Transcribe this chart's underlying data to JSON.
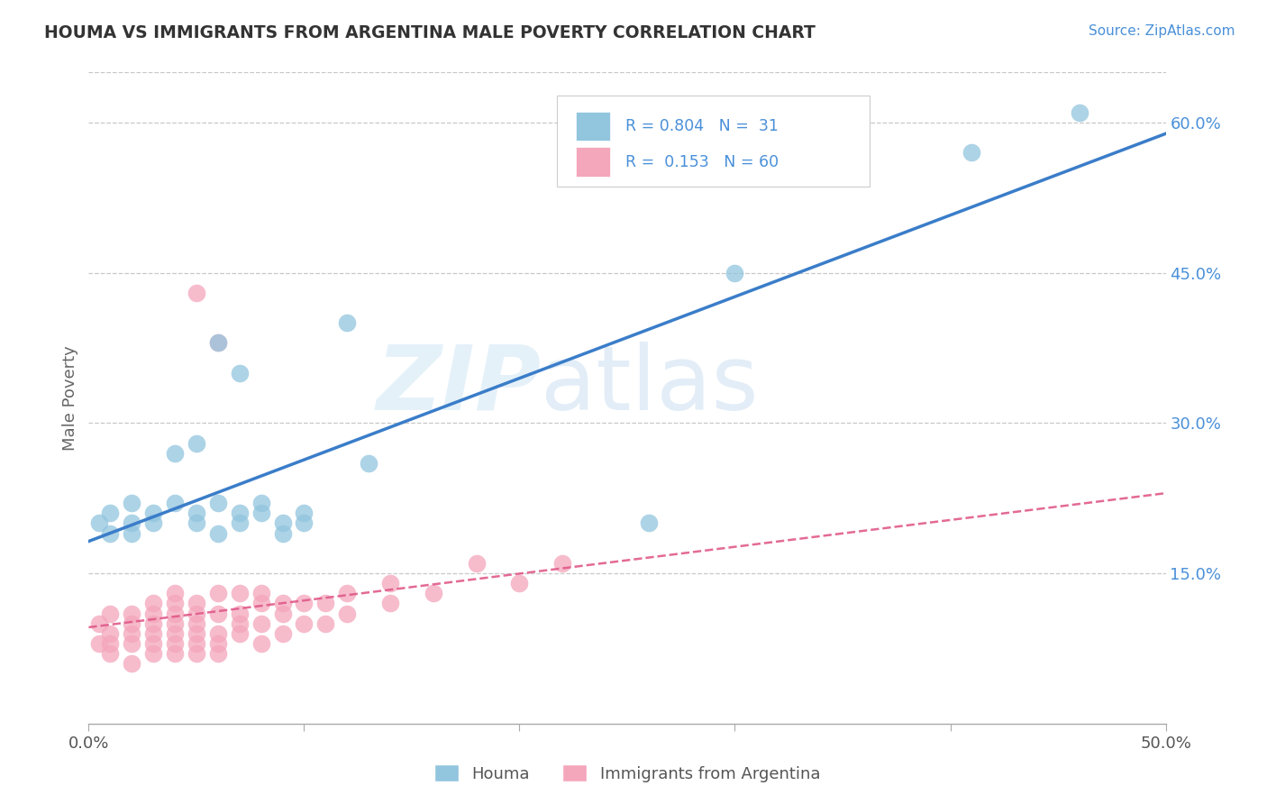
{
  "title": "HOUMA VS IMMIGRANTS FROM ARGENTINA MALE POVERTY CORRELATION CHART",
  "source": "Source: ZipAtlas.com",
  "ylabel": "Male Poverty",
  "x_min": 0.0,
  "x_max": 0.5,
  "y_min": 0.0,
  "y_max": 0.65,
  "x_ticks": [
    0.0,
    0.1,
    0.2,
    0.3,
    0.4,
    0.5
  ],
  "x_tick_labels": [
    "0.0%",
    "",
    "",
    "",
    "",
    "50.0%"
  ],
  "y_ticks_right": [
    0.15,
    0.3,
    0.45,
    0.6
  ],
  "y_tick_labels_right": [
    "15.0%",
    "30.0%",
    "45.0%",
    "60.0%"
  ],
  "houma_color": "#92c5de",
  "argentina_color": "#f4a6bb",
  "houma_line_color": "#3a7dc9",
  "argentina_line_color": "#e05a8a",
  "watermark_zip": "ZIP",
  "watermark_atlas": "atlas",
  "background_color": "#ffffff",
  "grid_color": "#c8c8c8",
  "legend_box_color": "#f0f0f0",
  "houma_x": [
    0.005,
    0.01,
    0.01,
    0.02,
    0.02,
    0.02,
    0.03,
    0.03,
    0.04,
    0.04,
    0.05,
    0.05,
    0.06,
    0.06,
    0.07,
    0.07,
    0.08,
    0.08,
    0.09,
    0.09,
    0.1,
    0.1,
    0.12,
    0.05,
    0.06,
    0.07,
    0.26,
    0.3,
    0.41,
    0.46,
    0.13
  ],
  "houma_y": [
    0.2,
    0.19,
    0.21,
    0.2,
    0.22,
    0.19,
    0.21,
    0.2,
    0.22,
    0.27,
    0.21,
    0.2,
    0.22,
    0.19,
    0.21,
    0.2,
    0.22,
    0.21,
    0.2,
    0.19,
    0.21,
    0.2,
    0.4,
    0.28,
    0.38,
    0.35,
    0.2,
    0.45,
    0.57,
    0.61,
    0.26
  ],
  "argentina_x": [
    0.005,
    0.005,
    0.01,
    0.01,
    0.01,
    0.01,
    0.02,
    0.02,
    0.02,
    0.02,
    0.02,
    0.03,
    0.03,
    0.03,
    0.03,
    0.03,
    0.03,
    0.04,
    0.04,
    0.04,
    0.04,
    0.04,
    0.04,
    0.04,
    0.05,
    0.05,
    0.05,
    0.05,
    0.05,
    0.05,
    0.06,
    0.06,
    0.06,
    0.06,
    0.06,
    0.07,
    0.07,
    0.07,
    0.07,
    0.08,
    0.08,
    0.08,
    0.08,
    0.09,
    0.09,
    0.09,
    0.1,
    0.1,
    0.11,
    0.11,
    0.12,
    0.12,
    0.14,
    0.14,
    0.16,
    0.18,
    0.2,
    0.22,
    0.05,
    0.06
  ],
  "argentina_y": [
    0.08,
    0.1,
    0.07,
    0.09,
    0.11,
    0.08,
    0.06,
    0.09,
    0.11,
    0.08,
    0.1,
    0.07,
    0.09,
    0.11,
    0.08,
    0.1,
    0.12,
    0.07,
    0.09,
    0.11,
    0.08,
    0.1,
    0.12,
    0.13,
    0.07,
    0.09,
    0.11,
    0.08,
    0.1,
    0.12,
    0.07,
    0.09,
    0.11,
    0.13,
    0.08,
    0.09,
    0.11,
    0.13,
    0.1,
    0.08,
    0.1,
    0.12,
    0.13,
    0.09,
    0.11,
    0.12,
    0.1,
    0.12,
    0.1,
    0.12,
    0.11,
    0.13,
    0.12,
    0.14,
    0.13,
    0.16,
    0.14,
    0.16,
    0.43,
    0.38
  ]
}
